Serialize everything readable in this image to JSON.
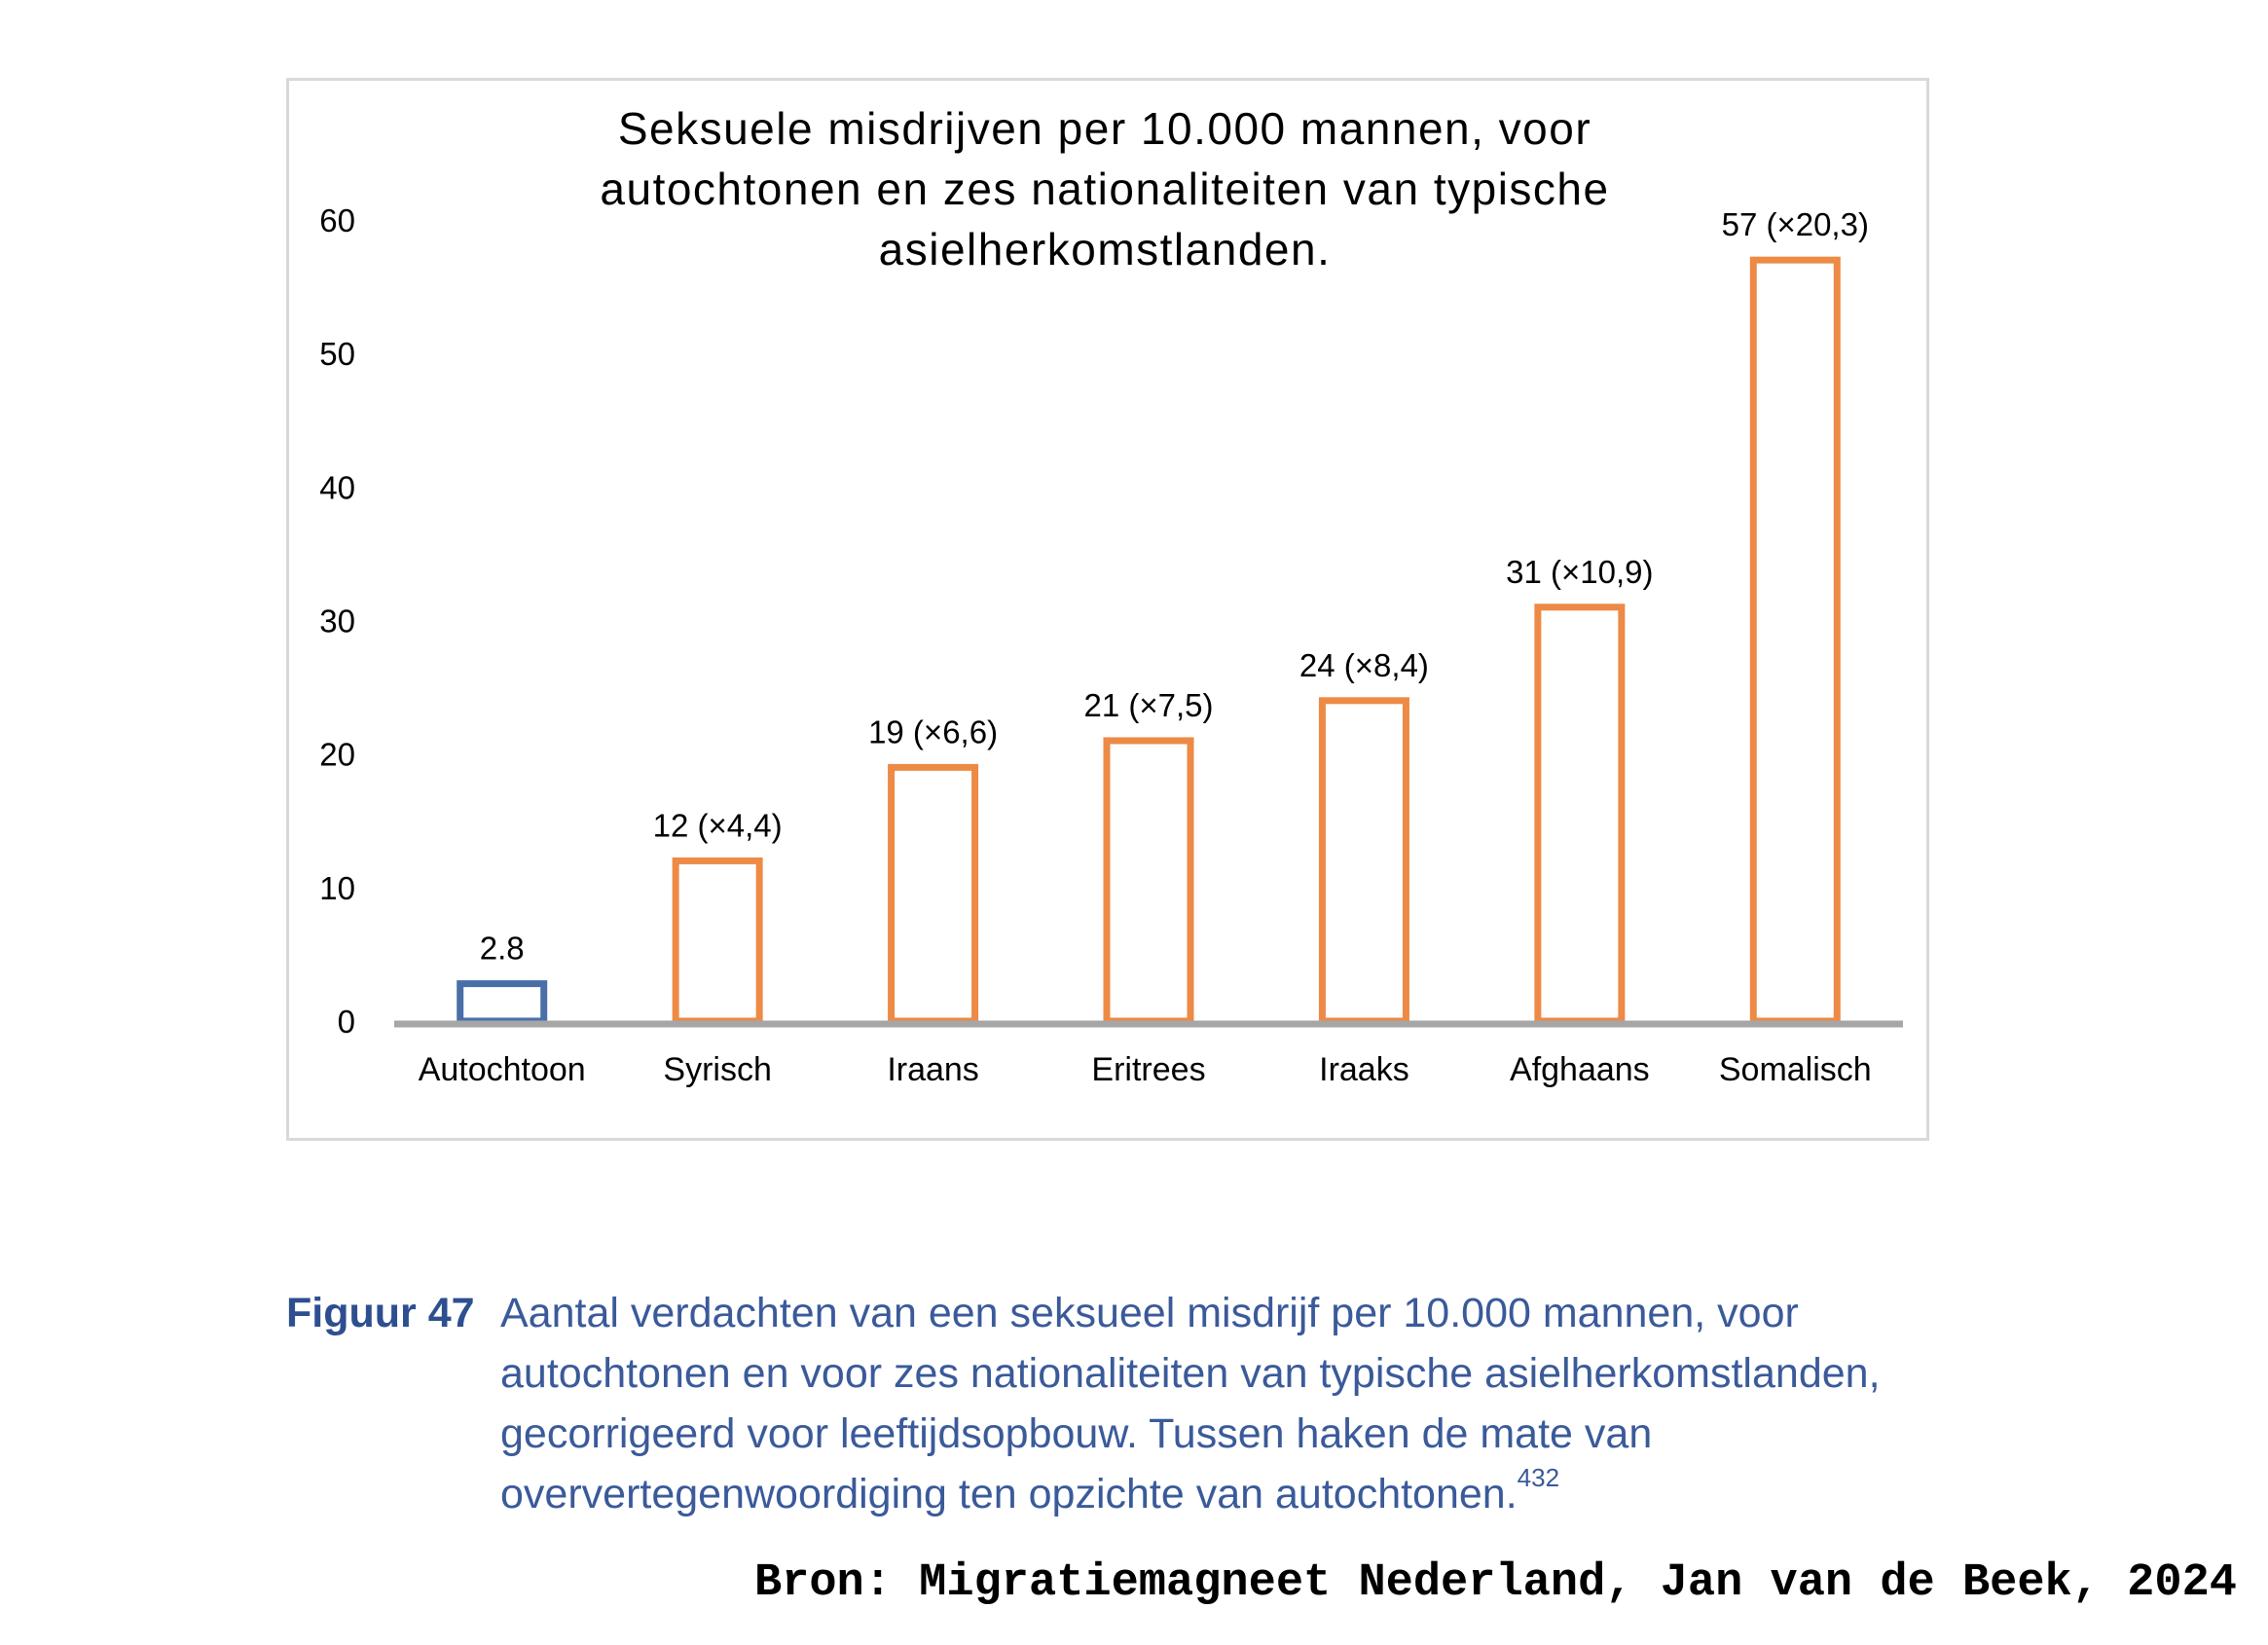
{
  "chart_data": {
    "type": "bar",
    "title_lines": [
      "Seksuele misdrijven per 10.000 mannen, voor",
      "autochtonen en zes nationaliteiten van typische",
      "asielherkomstlanden."
    ],
    "categories": [
      "Autochtoon",
      "Syrisch",
      "Iraans",
      "Eritrees",
      "Iraaks",
      "Afghaans",
      "Somalisch"
    ],
    "values": [
      2.8,
      12,
      19,
      21,
      24,
      31,
      57
    ],
    "data_labels": [
      "2.8",
      "12 (×4,4)",
      "19 (×6,6)",
      "21 (×7,5)",
      "24 (×8,4)",
      "31 (×10,9)",
      "57 (×20,3)"
    ],
    "bar_colors": [
      "#4a6fa8",
      "#ed8a45",
      "#ed8a45",
      "#ed8a45",
      "#ed8a45",
      "#ed8a45",
      "#ed8a45"
    ],
    "ylim": [
      0,
      60
    ],
    "yticks": [
      0,
      10,
      20,
      30,
      40,
      50,
      60
    ],
    "xlabel": "",
    "ylabel": "",
    "grid": false,
    "axis_color": "#a6a6a6"
  },
  "caption": {
    "label": "Figuur 47",
    "text": "Aantal verdachten van een seksueel misdrijf per 10.000 mannen, voor autochtonen en voor zes nationaliteiten van typische asielherkomstlanden, gecorrigeerd voor leeftijdsopbouw. Tussen haken de mate van oververtegenwoordiging ten opzichte van autochtonen.",
    "footnote": "432"
  },
  "source": "Bron: Migratiemagneet Nederland, Jan van de Beek, 2024"
}
